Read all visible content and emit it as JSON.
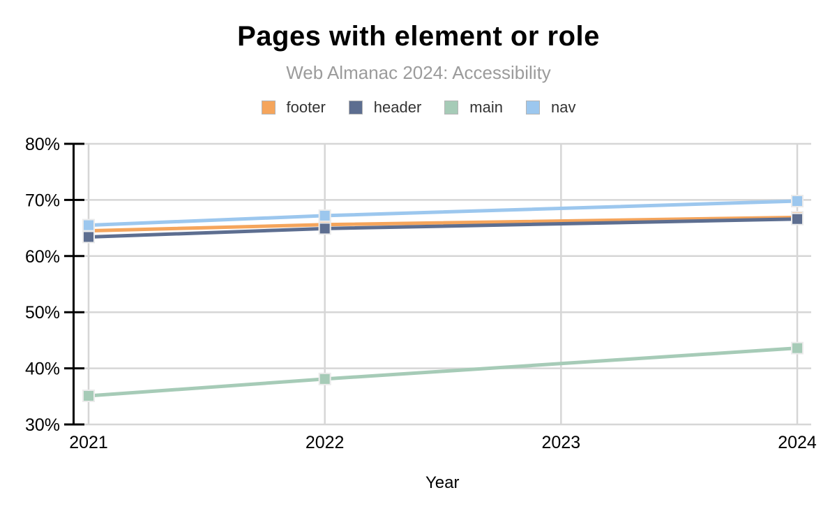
{
  "page": {
    "title": "Pages with element or role",
    "subtitle": "Web Almanac 2024: Accessibility"
  },
  "chart_data": {
    "type": "line",
    "title": "Pages with element or role",
    "subtitle": "Web Almanac 2024: Accessibility",
    "xlabel": "Year",
    "ylabel": "",
    "x": [
      2021,
      2022,
      2024
    ],
    "x_axis_ticks": [
      "2021",
      "2022",
      "2023",
      "2024"
    ],
    "y_axis_ticks": [
      "80%",
      "70%",
      "60%",
      "50%",
      "40%",
      "30%"
    ],
    "xlim": [
      2021,
      2024
    ],
    "ylim": [
      30,
      80
    ],
    "y_unit": "%",
    "grid": true,
    "legend_position": "top",
    "marker": "square",
    "series": [
      {
        "name": "footer",
        "color": "#F5A55C",
        "values": [
          64.5,
          65.6,
          66.9
        ]
      },
      {
        "name": "header",
        "color": "#5D6E90",
        "values": [
          63.4,
          64.9,
          66.6
        ]
      },
      {
        "name": "main",
        "color": "#A6CBB7",
        "values": [
          35.1,
          38.1,
          43.6
        ]
      },
      {
        "name": "nav",
        "color": "#9CC7EE",
        "values": [
          65.5,
          67.2,
          69.8
        ]
      }
    ],
    "colors": {
      "gridline": "#D6D6D6",
      "axis": "#000000",
      "subtitle_text": "#9B9B9B",
      "legend_text": "#333333",
      "marker_border": "#EBEBEB",
      "background": "#FFFFFF"
    }
  }
}
